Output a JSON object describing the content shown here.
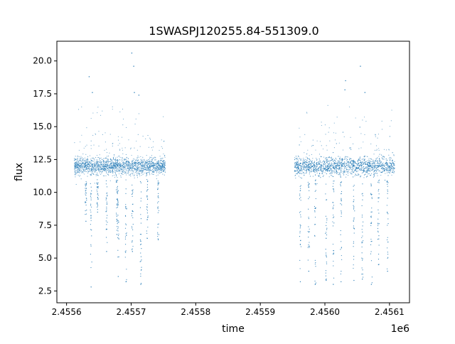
{
  "chart_data": {
    "type": "scatter",
    "title": "1SWASPJ120255.84-551309.0",
    "xlabel": "time",
    "ylabel": "flux",
    "x_offset_label": "1e6",
    "xlim": [
      2.455585,
      2.456131
    ],
    "ylim": [
      1.6,
      21.5
    ],
    "x_ticks": [
      2.4556,
      2.4557,
      2.4558,
      2.4559,
      2.456,
      2.4561
    ],
    "x_tick_labels": [
      "2.4556",
      "2.4557",
      "2.4558",
      "2.4559",
      "2.4560",
      "2.4561"
    ],
    "y_ticks": [
      2.5,
      5.0,
      7.5,
      10.0,
      12.5,
      15.0,
      17.5,
      20.0
    ],
    "y_tick_labels": [
      "2.5",
      "5.0",
      "7.5",
      "10.0",
      "12.5",
      "15.0",
      "17.5",
      "20.0"
    ],
    "grid": false,
    "legend": "none",
    "marker_color": "#1f77b4",
    "series": [
      {
        "segments": [
          {
            "x_start": 2.455612,
            "x_end": 2.455753,
            "baseline": 12.0,
            "scatter": 0.45,
            "count": 1800
          },
          {
            "x_start": 2.455953,
            "x_end": 2.456108,
            "baseline": 12.0,
            "scatter": 0.5,
            "count": 2000
          }
        ],
        "dips": [
          {
            "x": 2.45563,
            "min": 7.8
          },
          {
            "x": 2.455638,
            "min": 2.8
          },
          {
            "x": 2.455648,
            "min": 8.5
          },
          {
            "x": 2.455662,
            "min": 5.5
          },
          {
            "x": 2.455678,
            "min": 6.8
          },
          {
            "x": 2.45568,
            "min": 3.6
          },
          {
            "x": 2.455692,
            "min": 3.2
          },
          {
            "x": 2.455702,
            "min": 5.5
          },
          {
            "x": 2.455715,
            "min": 3.0
          },
          {
            "x": 2.455725,
            "min": 6.5
          },
          {
            "x": 2.455742,
            "min": 6.4
          },
          {
            "x": 2.455962,
            "min": 3.2
          },
          {
            "x": 2.455975,
            "min": 4.0
          },
          {
            "x": 2.455985,
            "min": 3.0
          },
          {
            "x": 2.456002,
            "min": 3.3
          },
          {
            "x": 2.456013,
            "min": 3.0
          },
          {
            "x": 2.456025,
            "min": 3.2
          },
          {
            "x": 2.456045,
            "min": 3.3
          },
          {
            "x": 2.456058,
            "min": 3.4
          },
          {
            "x": 2.456072,
            "min": 3.0
          },
          {
            "x": 2.456083,
            "min": 4.5
          },
          {
            "x": 2.456097,
            "min": 4.0
          }
        ],
        "flares": [
          {
            "x": 2.455635,
            "y": 18.8
          },
          {
            "x": 2.45564,
            "y": 17.6
          },
          {
            "x": 2.455701,
            "y": 20.6
          },
          {
            "x": 2.455704,
            "y": 19.6
          },
          {
            "x": 2.455705,
            "y": 17.6
          },
          {
            "x": 2.455712,
            "y": 17.4
          },
          {
            "x": 2.456032,
            "y": 18.5
          },
          {
            "x": 2.456031,
            "y": 17.8
          },
          {
            "x": 2.456055,
            "y": 19.6
          },
          {
            "x": 2.456062,
            "y": 17.6
          }
        ]
      }
    ]
  }
}
